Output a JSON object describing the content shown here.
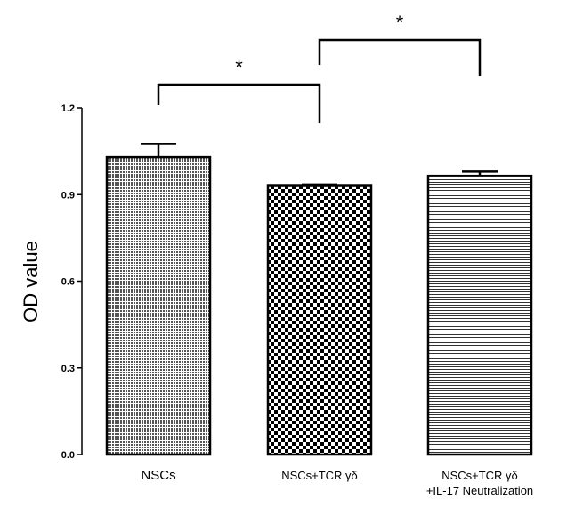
{
  "chart_data": {
    "type": "bar",
    "categories": [
      "NSCs",
      "NSCs+TCR γδ",
      "NSCs+TCR γδ\n+IL-17 Neutralization"
    ],
    "category_lines": [
      [
        "NSCs"
      ],
      [
        "NSCs+TCR γδ"
      ],
      [
        "NSCs+TCR γδ",
        "+IL-17 Neutralization"
      ]
    ],
    "values": [
      1.03,
      0.93,
      0.965
    ],
    "errors": [
      0.045,
      0.005,
      0.015
    ],
    "ylabel": "OD value",
    "xlabel": "",
    "title": "",
    "ylim": [
      0,
      1.2
    ],
    "yticks": [
      0.0,
      0.3,
      0.6,
      0.9,
      1.2
    ],
    "ytick_labels": [
      "0.0",
      "0.3",
      "0.6",
      "0.9",
      "1.2"
    ],
    "patterns": [
      "dense-dots",
      "checkerboard",
      "horizontal-lines"
    ],
    "significance": [
      {
        "from": 0,
        "to": 1,
        "label": "*"
      },
      {
        "from": 1,
        "to": 2,
        "label": "*"
      }
    ],
    "grid": false,
    "legend": "none"
  }
}
